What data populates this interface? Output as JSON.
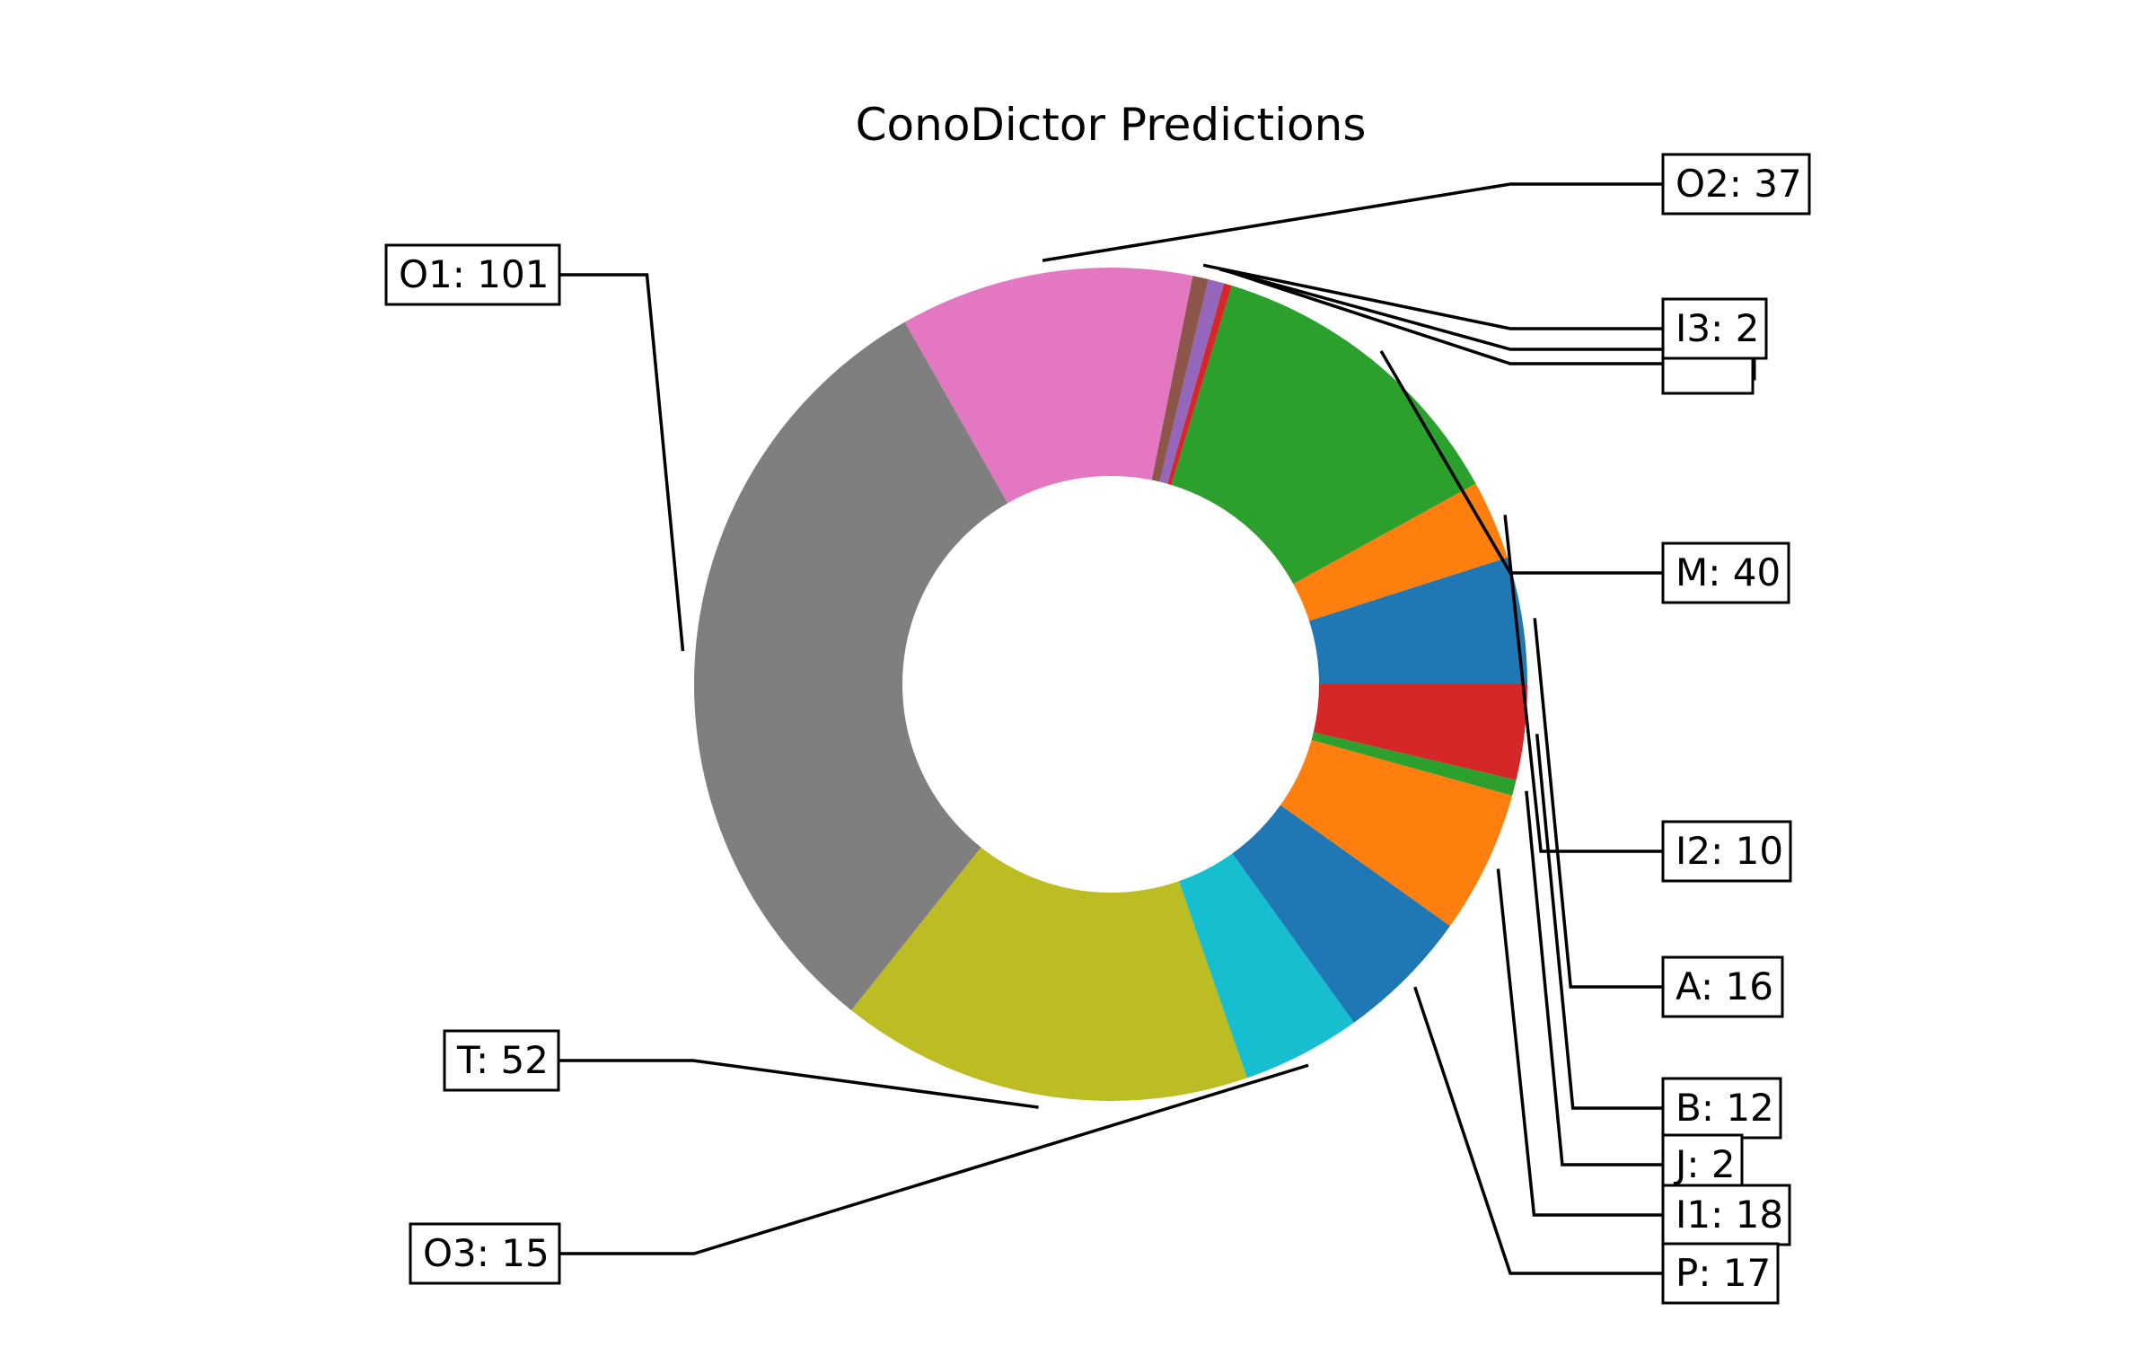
{
  "chart_data": {
    "type": "pie",
    "donut": true,
    "title": "ConoDictor Predictions",
    "slices": [
      {
        "label": "A",
        "value": 16,
        "color": "#1f77b4"
      },
      {
        "label": "I2",
        "value": 10,
        "color": "#ff7f0e"
      },
      {
        "label": "M",
        "value": 40,
        "color": "#2ca02c"
      },
      {
        "label": "",
        "value": 1,
        "color": "#d62728"
      },
      {
        "label": "",
        "value": 2,
        "color": "#9467bd"
      },
      {
        "label": "I3",
        "value": 2,
        "color": "#8c564b"
      },
      {
        "label": "O2",
        "value": 37,
        "color": "#e377c2"
      },
      {
        "label": "O1",
        "value": 101,
        "color": "#7f7f7f"
      },
      {
        "label": "T",
        "value": 52,
        "color": "#bcbd22"
      },
      {
        "label": "O3",
        "value": 15,
        "color": "#17becf"
      },
      {
        "label": "P",
        "value": 17,
        "color": "#1f77b4"
      },
      {
        "label": "I1",
        "value": 18,
        "color": "#ff7f0e"
      },
      {
        "label": "J",
        "value": 2,
        "color": "#2ca02c"
      },
      {
        "label": "B",
        "value": 12,
        "color": "#d62728"
      }
    ],
    "label_texts": {
      "A": "A: 16",
      "I2": "I2: 10",
      "M": "M: 40",
      "I3": "I3: 2",
      "O2": "O2: 37",
      "O1": "O1: 101",
      "T": "T: 52",
      "O3": "O3: 15",
      "P": "P: 17",
      "I1": "I1: 18",
      "J": "J: 2",
      "B": "B: 12"
    },
    "legend": "none",
    "grid": false
  }
}
